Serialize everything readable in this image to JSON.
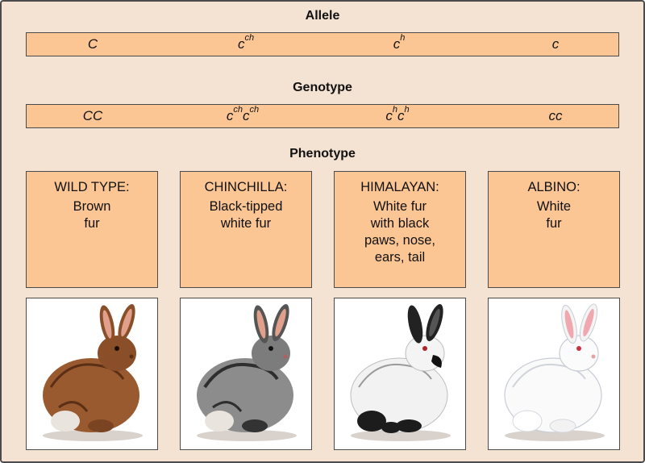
{
  "headings": {
    "allele": "Allele",
    "genotype": "Genotype",
    "phenotype": "Phenotype"
  },
  "alleles": [
    {
      "base": "C",
      "sup": ""
    },
    {
      "base": "c",
      "sup": "ch"
    },
    {
      "base": "c",
      "sup": "h"
    },
    {
      "base": "c",
      "sup": ""
    }
  ],
  "genotypes": [
    {
      "parts": [
        {
          "base": "CC",
          "sup": ""
        }
      ]
    },
    {
      "parts": [
        {
          "base": "c",
          "sup": "ch"
        },
        {
          "base": "c",
          "sup": "ch"
        }
      ]
    },
    {
      "parts": [
        {
          "base": "c",
          "sup": "h"
        },
        {
          "base": "c",
          "sup": "h"
        }
      ]
    },
    {
      "parts": [
        {
          "base": "cc",
          "sup": ""
        }
      ]
    }
  ],
  "phenotypes": [
    {
      "name": "WILD TYPE:",
      "desc": "Brown\nfur"
    },
    {
      "name": "CHINCHILLA:",
      "desc": "Black-tipped\nwhite fur"
    },
    {
      "name": "HIMALAYAN:",
      "desc": "White fur\nwith black\npaws, nose,\nears, tail"
    },
    {
      "name": "ALBINO:",
      "desc": "White\nfur"
    }
  ],
  "colors": {
    "background": "#f4e3d2",
    "box_fill": "#fbc594",
    "border": "#4b4b4b",
    "wild_fur": "#9a5a30",
    "chinchilla_fur": "#8c8c8c",
    "himalayan_fur": "#f2f2f2",
    "albino_fur": "#fafafa"
  }
}
